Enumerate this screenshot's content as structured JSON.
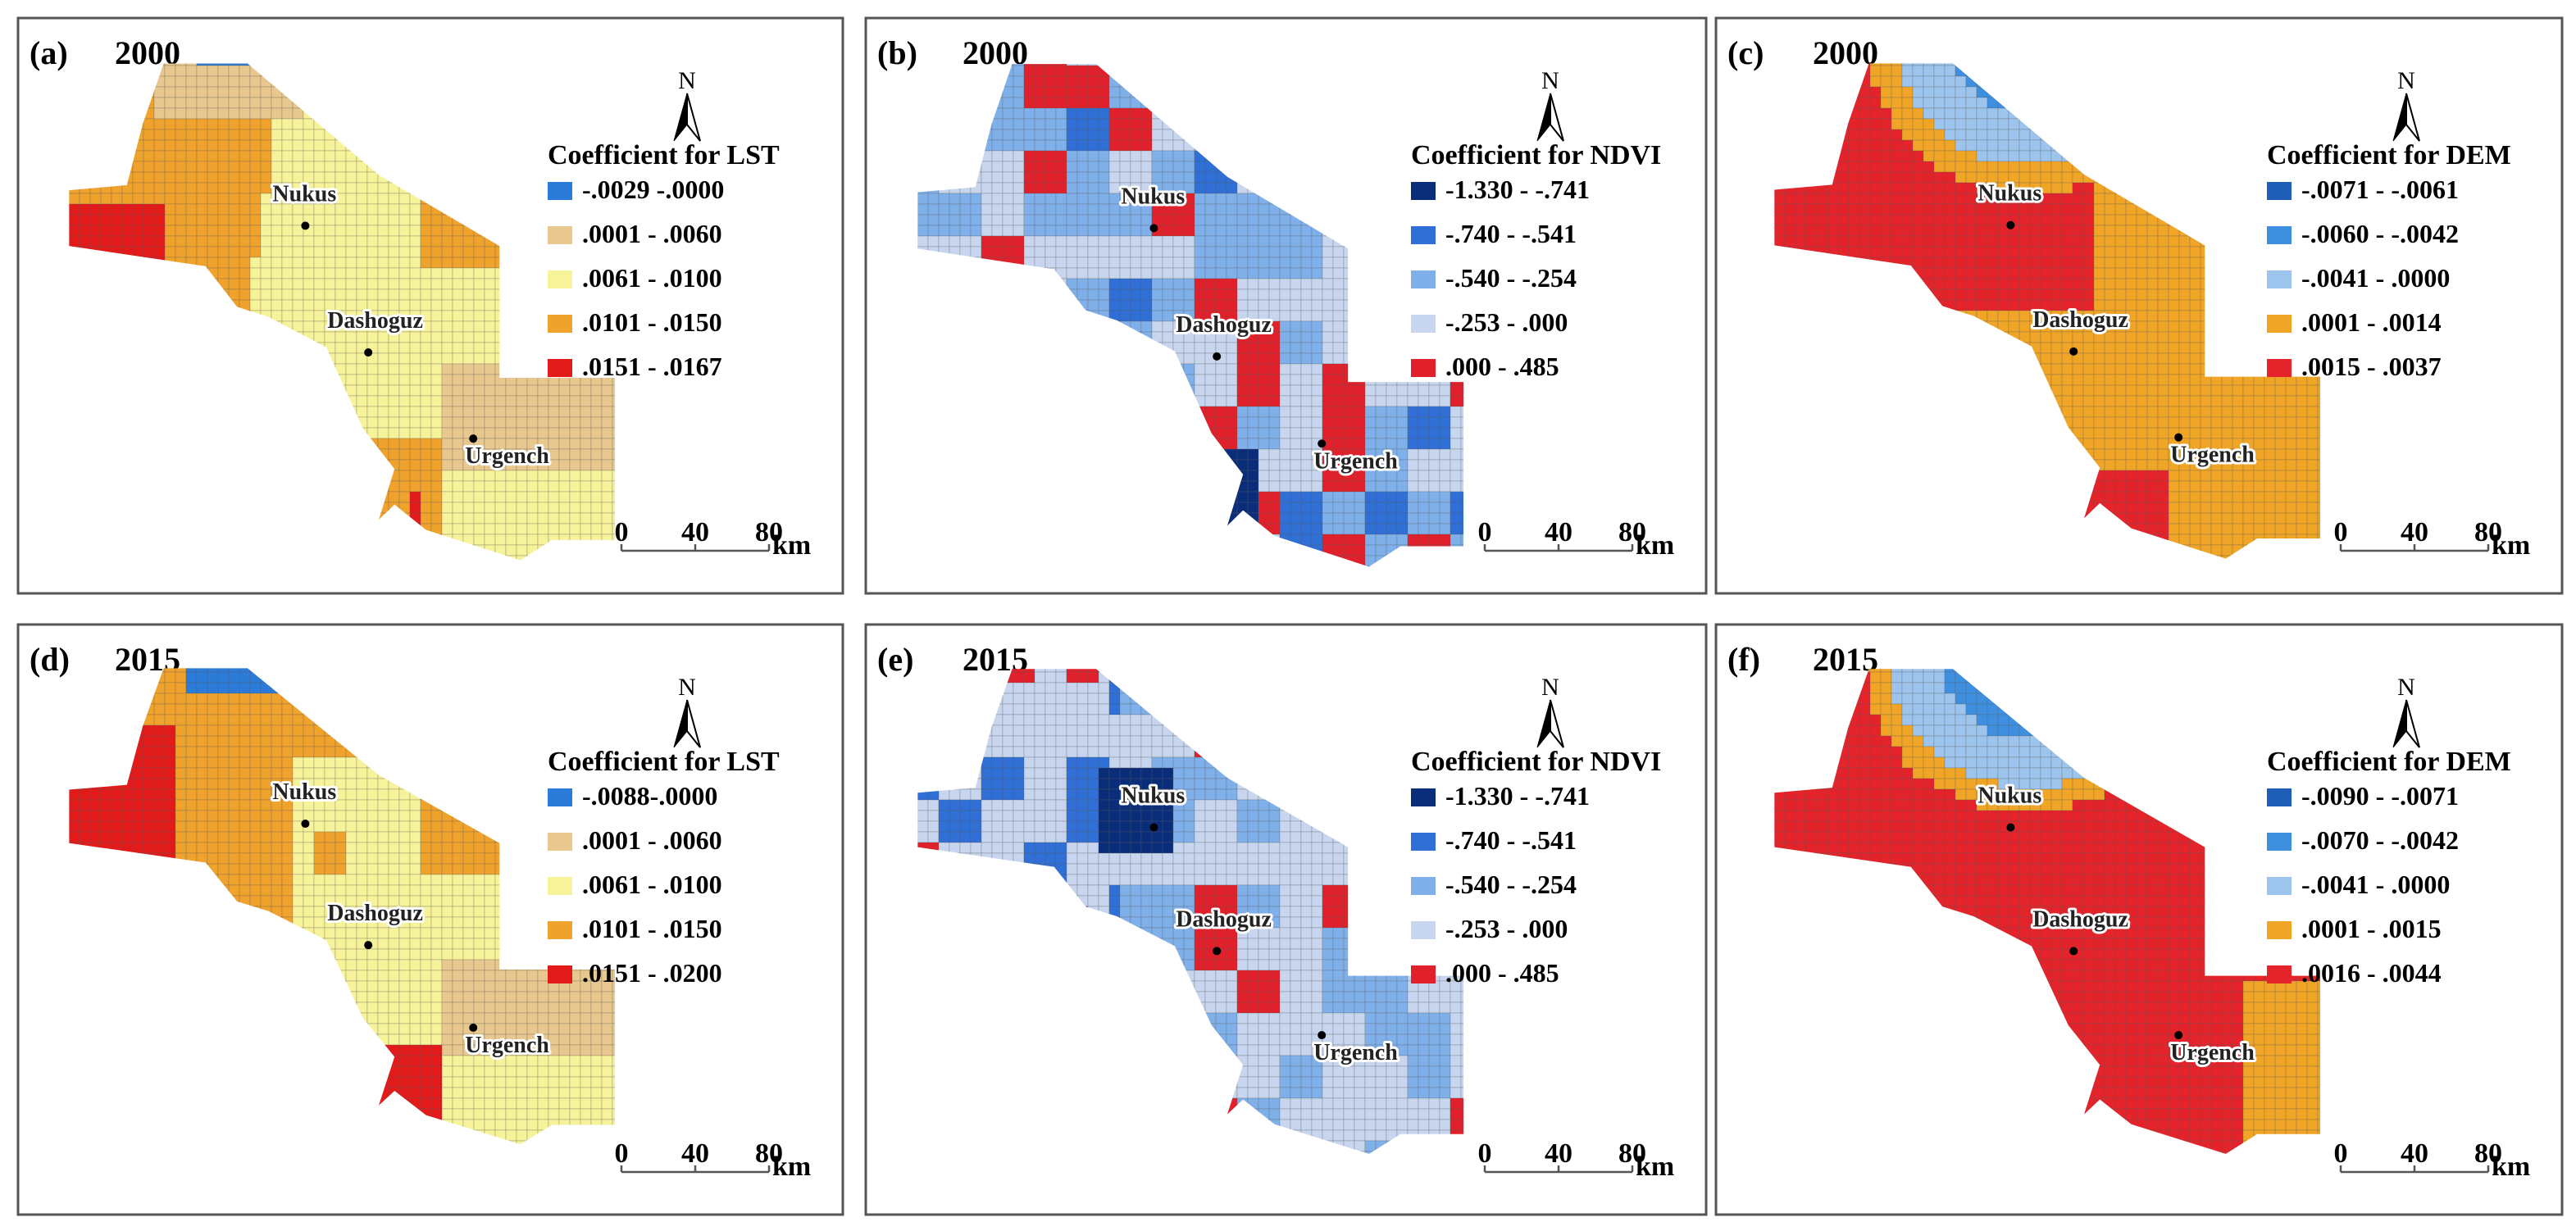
{
  "figure": {
    "panels": [
      {
        "label": "(a)",
        "year": "2000",
        "legend_title": "Coefficient for LST",
        "map_type": "lst_2000",
        "classes": [
          {
            "range": "-.0029 -.0000",
            "color": "#2b7bd8"
          },
          {
            "range": ".0001 - .0060",
            "color": "#e8c88e"
          },
          {
            "range": ".0061 - .0100",
            "color": "#f7f39a"
          },
          {
            "range": ".0101 - .0150",
            "color": "#f0a32c"
          },
          {
            "range": ".0151 - .0167",
            "color": "#e21a1a"
          }
        ],
        "cities": [
          "Nukus",
          "Dashoguz",
          "Urgench"
        ],
        "north_label": "N",
        "scale": {
          "ticks": [
            "0",
            "40",
            "80"
          ],
          "unit": "km"
        }
      },
      {
        "label": "(b)",
        "year": "2000",
        "legend_title": "Coefficient for NDVI",
        "map_type": "ndvi_2000",
        "classes": [
          {
            "range": "-1.330 - -.741",
            "color": "#0a2d7a"
          },
          {
            "range": "-.740 - -.541",
            "color": "#2f6fd6"
          },
          {
            "range": "-.540 - -.254",
            "color": "#7fb0ea"
          },
          {
            "range": "-.253 - .000",
            "color": "#c7d6ee"
          },
          {
            "range": ".000 - .485",
            "color": "#e0202a"
          }
        ],
        "cities": [
          "Nukus",
          "Dashoguz",
          "Urgench"
        ],
        "north_label": "N",
        "scale": {
          "ticks": [
            "0",
            "40",
            "80"
          ],
          "unit": "km"
        }
      },
      {
        "label": "(c)",
        "year": "2000",
        "legend_title": "Coefficient for DEM",
        "map_type": "dem_2000",
        "classes": [
          {
            "range": "-.0071 - -.0061",
            "color": "#1f5eb8"
          },
          {
            "range": "-.0060 - -.0042",
            "color": "#3f8fe0"
          },
          {
            "range": "-.0041 - .0000",
            "color": "#9cc4ec"
          },
          {
            "range": ".0001 - .0014",
            "color": "#f0a526"
          },
          {
            "range": ".0015 - .0037",
            "color": "#e4232a"
          }
        ],
        "cities": [
          "Nukus",
          "Dashoguz",
          "Urgench"
        ],
        "north_label": "N",
        "scale": {
          "ticks": [
            "0",
            "40",
            "80"
          ],
          "unit": "km"
        }
      },
      {
        "label": "(d)",
        "year": "2015",
        "legend_title": "Coefficient for LST",
        "map_type": "lst_2015",
        "classes": [
          {
            "range": "-.0088-.0000",
            "color": "#2b7bd8"
          },
          {
            "range": ".0001 - .0060",
            "color": "#e8c88e"
          },
          {
            "range": ".0061 - .0100",
            "color": "#f7f39a"
          },
          {
            "range": ".0101 - .0150",
            "color": "#f0a32c"
          },
          {
            "range": ".0151 - .0200",
            "color": "#e21a1a"
          }
        ],
        "cities": [
          "Nukus",
          "Dashoguz",
          "Urgench"
        ],
        "north_label": "N",
        "scale": {
          "ticks": [
            "0",
            "40",
            "80"
          ],
          "unit": "km"
        }
      },
      {
        "label": "(e)",
        "year": "2015",
        "legend_title": "Coefficient for NDVI",
        "map_type": "ndvi_2015",
        "classes": [
          {
            "range": "-1.330 - -.741",
            "color": "#0a2d7a"
          },
          {
            "range": "-.740 - -.541",
            "color": "#2f6fd6"
          },
          {
            "range": "-.540 - -.254",
            "color": "#7fb0ea"
          },
          {
            "range": "-.253 - .000",
            "color": "#c7d6ee"
          },
          {
            "range": ".000 - .485",
            "color": "#e0202a"
          }
        ],
        "cities": [
          "Nukus",
          "Dashoguz",
          "Urgench"
        ],
        "north_label": "N",
        "scale": {
          "ticks": [
            "0",
            "40",
            "80"
          ],
          "unit": "km"
        }
      },
      {
        "label": "(f)",
        "year": "2015",
        "legend_title": "Coefficient for DEM",
        "map_type": "dem_2015",
        "classes": [
          {
            "range": "-.0090 - -.0071",
            "color": "#1f5eb8"
          },
          {
            "range": "-.0070 - -.0042",
            "color": "#3f8fe0"
          },
          {
            "range": "-.0041 - .0000",
            "color": "#9cc4ec"
          },
          {
            "range": ".0001 - .0015",
            "color": "#f0a526"
          },
          {
            "range": ".0016 - .0044",
            "color": "#e4232a"
          }
        ],
        "cities": [
          "Nukus",
          "Dashoguz",
          "Urgench"
        ],
        "north_label": "N",
        "scale": {
          "ticks": [
            "0",
            "40",
            "80"
          ],
          "unit": "km"
        }
      }
    ]
  }
}
